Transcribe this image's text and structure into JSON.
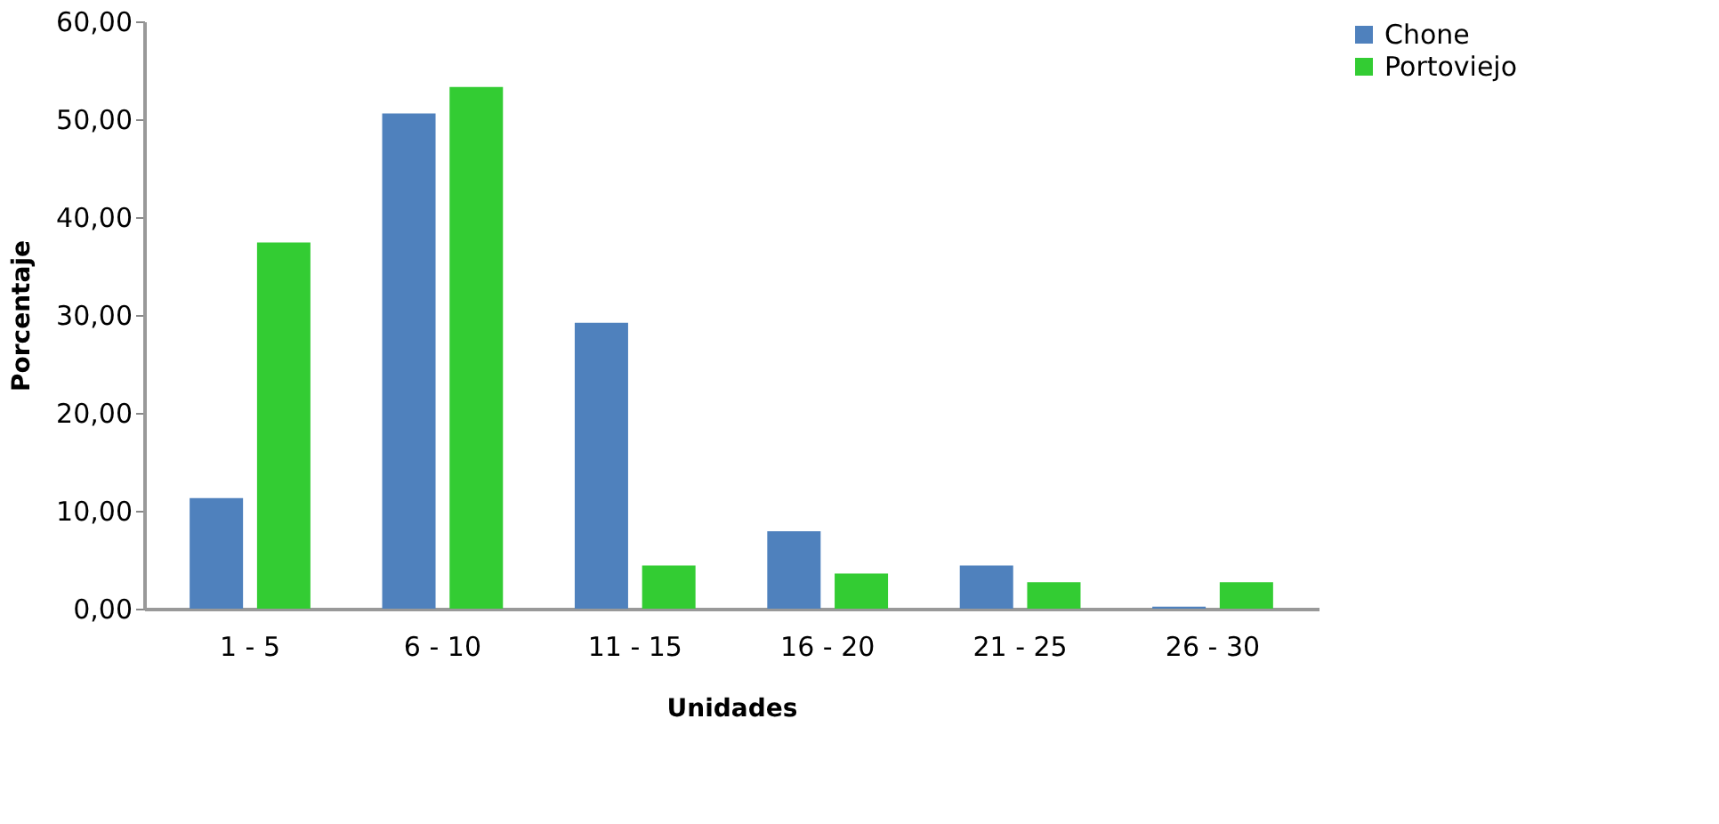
{
  "chart_data": {
    "type": "bar",
    "xlabel": "Unidades",
    "ylabel": "Porcentaje",
    "categories": [
      "1 - 5",
      "6 - 10",
      "11 - 15",
      "16 - 20",
      "21 - 25",
      "26 - 30"
    ],
    "series": [
      {
        "name": "Chone",
        "color": "#4f81bd",
        "values": [
          11.3,
          50.6,
          29.2,
          7.9,
          4.4,
          0.2
        ]
      },
      {
        "name": "Portoviejo",
        "color": "#33cc33",
        "values": [
          37.4,
          53.3,
          4.4,
          3.6,
          2.7,
          2.7
        ]
      }
    ],
    "ylim": [
      0,
      60
    ],
    "yticks": [
      {
        "value": 0,
        "label": "0,00"
      },
      {
        "value": 10,
        "label": "10,00"
      },
      {
        "value": 20,
        "label": "20,00"
      },
      {
        "value": 30,
        "label": "30,00"
      },
      {
        "value": 40,
        "label": "40,00"
      },
      {
        "value": 50,
        "label": "50,00"
      },
      {
        "value": 60,
        "label": "60,00"
      }
    ],
    "grid": false,
    "legend": "right"
  }
}
